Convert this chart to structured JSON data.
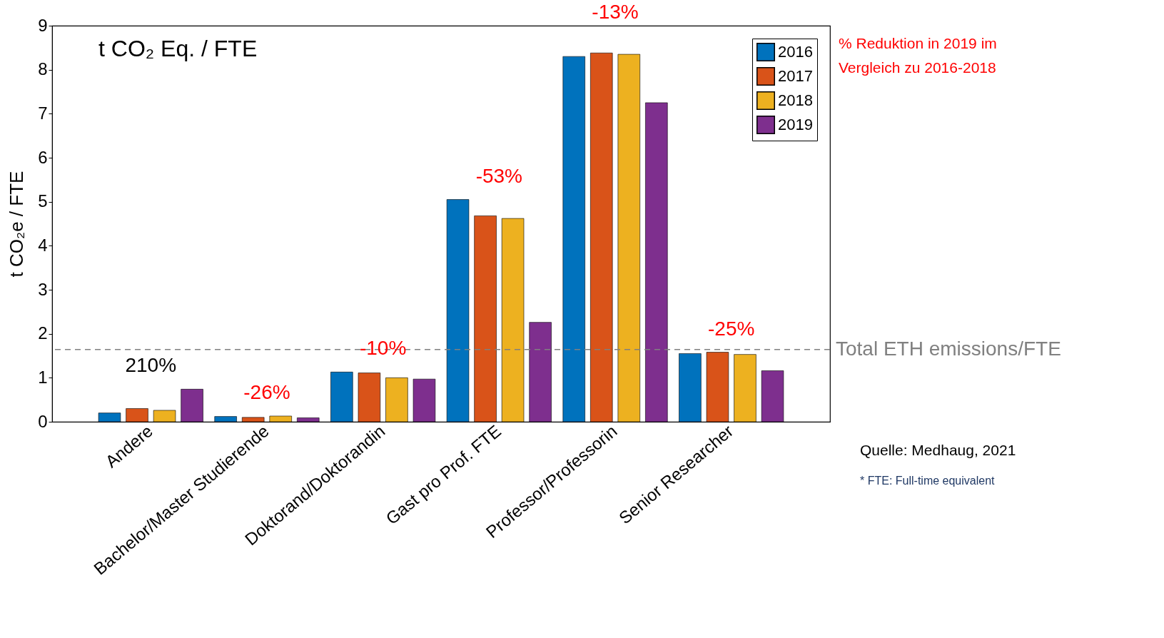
{
  "chart_data": {
    "type": "bar",
    "title": "t CO₂ Eq. / FTE",
    "ylabel": "t CO₂e / FTE",
    "categories": [
      "Andere",
      "Bachelor/Master Studierende",
      "Doktorand/Doktorandin",
      "Gast pro Prof. FTE",
      "Professor/Professorin",
      "Senior Researcher"
    ],
    "series": [
      {
        "name": "2016",
        "color": "#0072bd",
        "values": [
          0.2,
          0.12,
          1.13,
          5.05,
          8.3,
          1.55
        ]
      },
      {
        "name": "2017",
        "color": "#d95319",
        "values": [
          0.3,
          0.1,
          1.11,
          4.68,
          8.38,
          1.58
        ]
      },
      {
        "name": "2018",
        "color": "#edb120",
        "values": [
          0.26,
          0.13,
          1.0,
          4.62,
          8.35,
          1.53
        ]
      },
      {
        "name": "2019",
        "color": "#7e2f8e",
        "values": [
          0.74,
          0.09,
          0.97,
          2.26,
          7.25,
          1.16
        ]
      }
    ],
    "ylim": [
      0,
      9
    ],
    "yticks": [
      0,
      1,
      2,
      3,
      4,
      5,
      6,
      7,
      8,
      9
    ],
    "grid": false,
    "legend": "top right",
    "ref_lines": [
      {
        "axis": "y",
        "value": 1.64,
        "label": "Total ETH emissions/FTE",
        "color": "#808080",
        "line_style": "dashed"
      }
    ],
    "annotations": [
      "210%",
      "-26%",
      "-10%",
      "-53%",
      "-13%",
      "-25%",
      "% Reduktion in 2019 im Vergleich zu 2016-2018",
      "Quelle: Medhaug, 2021",
      "* FTE: Full-time equivalent"
    ]
  }
}
